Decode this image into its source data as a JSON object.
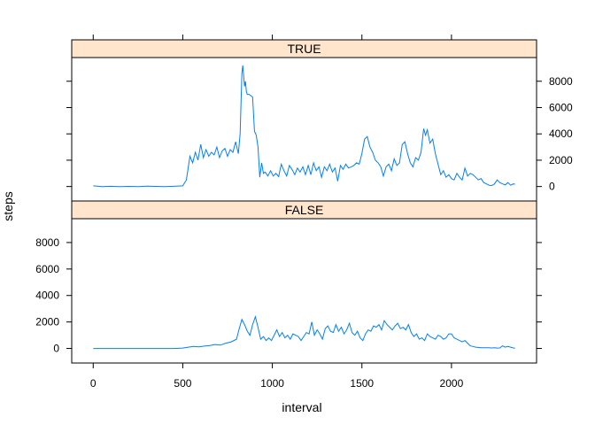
{
  "chart_data": {
    "type": "line",
    "xlabel": "interval",
    "ylabel": "steps",
    "xlim": [
      -120,
      2475
    ],
    "ylim": [
      -1100,
      9800
    ],
    "x_ticks": [
      0,
      500,
      1000,
      1500,
      2000
    ],
    "y_ticks": [
      0,
      2000,
      4000,
      6000,
      8000
    ],
    "line_color": "#0080ff",
    "strip_color": "#ffe5cc",
    "panels": [
      {
        "label": "TRUE",
        "y_tick_side": "right",
        "series": {
          "x": [
            0,
            50,
            100,
            150,
            200,
            250,
            300,
            350,
            400,
            450,
            500,
            520,
            540,
            555,
            570,
            585,
            600,
            615,
            630,
            645,
            660,
            675,
            690,
            705,
            720,
            735,
            750,
            765,
            780,
            795,
            810,
            820,
            830,
            835,
            840,
            845,
            850,
            855,
            860,
            870,
            880,
            890,
            900,
            910,
            920,
            930,
            940,
            950,
            960,
            975,
            990,
            1005,
            1020,
            1035,
            1050,
            1065,
            1080,
            1095,
            1110,
            1125,
            1140,
            1155,
            1170,
            1185,
            1200,
            1215,
            1230,
            1245,
            1260,
            1275,
            1290,
            1305,
            1320,
            1335,
            1350,
            1365,
            1380,
            1395,
            1410,
            1425,
            1440,
            1455,
            1470,
            1485,
            1500,
            1515,
            1530,
            1545,
            1560,
            1575,
            1590,
            1605,
            1620,
            1635,
            1650,
            1665,
            1680,
            1695,
            1710,
            1725,
            1740,
            1755,
            1770,
            1785,
            1800,
            1815,
            1830,
            1845,
            1855,
            1865,
            1880,
            1895,
            1910,
            1925,
            1940,
            1955,
            1970,
            1985,
            2000,
            2015,
            2030,
            2045,
            2060,
            2075,
            2090,
            2105,
            2120,
            2135,
            2150,
            2165,
            2180,
            2195,
            2210,
            2225,
            2240,
            2255,
            2270,
            2285,
            2300,
            2315,
            2330,
            2345,
            2355
          ],
          "y": [
            50,
            0,
            20,
            0,
            10,
            0,
            30,
            10,
            0,
            20,
            50,
            500,
            2300,
            1800,
            2600,
            2000,
            3200,
            2200,
            2800,
            2300,
            2600,
            2400,
            3000,
            2200,
            2700,
            2900,
            2300,
            2800,
            2600,
            3400,
            2500,
            4000,
            8600,
            9200,
            8400,
            7600,
            8000,
            7200,
            7000,
            7000,
            6900,
            6800,
            4200,
            3900,
            3000,
            700,
            1800,
            1000,
            1100,
            800,
            1200,
            800,
            1000,
            750,
            1700,
            1200,
            800,
            1600,
            1300,
            900,
            1400,
            1100,
            1500,
            900,
            1600,
            900,
            1800,
            1200,
            1500,
            700,
            1500,
            1200,
            1700,
            1100,
            1400,
            400,
            1600,
            1300,
            1700,
            1400,
            1500,
            1600,
            1800,
            1700,
            2500,
            3600,
            3800,
            3000,
            2600,
            2000,
            1800,
            1500,
            800,
            1500,
            1700,
            1200,
            2100,
            1600,
            1800,
            3200,
            3400,
            2500,
            1800,
            1500,
            2200,
            2000,
            2600,
            4400,
            3900,
            4300,
            3300,
            3600,
            2500,
            1700,
            900,
            1200,
            700,
            900,
            600,
            500,
            1000,
            700,
            500,
            1400,
            800,
            1000,
            900,
            700,
            500,
            600,
            300,
            200,
            100,
            80,
            200,
            500,
            300,
            200,
            120,
            300,
            100,
            200,
            180
          ]
        }
      },
      {
        "label": "FALSE",
        "y_tick_side": "left",
        "series": {
          "x": [
            0,
            50,
            100,
            150,
            200,
            250,
            300,
            350,
            400,
            450,
            500,
            530,
            560,
            590,
            620,
            650,
            680,
            710,
            740,
            770,
            800,
            815,
            830,
            845,
            860,
            875,
            890,
            905,
            920,
            935,
            950,
            965,
            980,
            995,
            1010,
            1025,
            1040,
            1055,
            1070,
            1085,
            1100,
            1115,
            1130,
            1145,
            1160,
            1175,
            1190,
            1205,
            1220,
            1235,
            1250,
            1265,
            1280,
            1295,
            1310,
            1325,
            1340,
            1355,
            1370,
            1385,
            1400,
            1415,
            1430,
            1445,
            1460,
            1475,
            1490,
            1505,
            1520,
            1535,
            1550,
            1565,
            1580,
            1595,
            1610,
            1625,
            1640,
            1655,
            1670,
            1685,
            1700,
            1715,
            1730,
            1745,
            1760,
            1775,
            1790,
            1805,
            1820,
            1835,
            1850,
            1865,
            1880,
            1895,
            1910,
            1925,
            1940,
            1955,
            1970,
            1985,
            2000,
            2015,
            2030,
            2045,
            2060,
            2075,
            2090,
            2105,
            2120,
            2135,
            2150,
            2165,
            2180,
            2195,
            2210,
            2225,
            2240,
            2255,
            2270,
            2285,
            2300,
            2315,
            2330,
            2345,
            2355
          ],
          "y": [
            0,
            0,
            0,
            0,
            0,
            0,
            0,
            0,
            0,
            0,
            30,
            100,
            150,
            120,
            180,
            220,
            300,
            250,
            400,
            500,
            700,
            1500,
            2200,
            1800,
            1300,
            1000,
            1800,
            2400,
            1600,
            700,
            900,
            600,
            800,
            600,
            1000,
            1400,
            900,
            1200,
            800,
            1000,
            700,
            1100,
            1000,
            900,
            600,
            900,
            1200,
            1100,
            2000,
            1000,
            1400,
            1100,
            700,
            1500,
            1700,
            1300,
            1200,
            1800,
            1300,
            1600,
            1100,
            1400,
            1900,
            1200,
            1000,
            1300,
            800,
            600,
            1100,
            1400,
            1300,
            1700,
            1600,
            1800,
            1400,
            2100,
            1800,
            1600,
            1400,
            1700,
            1900,
            1500,
            1600,
            1400,
            1800,
            1200,
            900,
            1100,
            700,
            800,
            600,
            1100,
            900,
            800,
            700,
            1000,
            900,
            700,
            800,
            1100,
            1100,
            800,
            700,
            600,
            500,
            600,
            400,
            200,
            150,
            100,
            80,
            60,
            50,
            50,
            60,
            40,
            50,
            30,
            40,
            200,
            100,
            150,
            100,
            40,
            30
          ]
        }
      }
    ]
  }
}
